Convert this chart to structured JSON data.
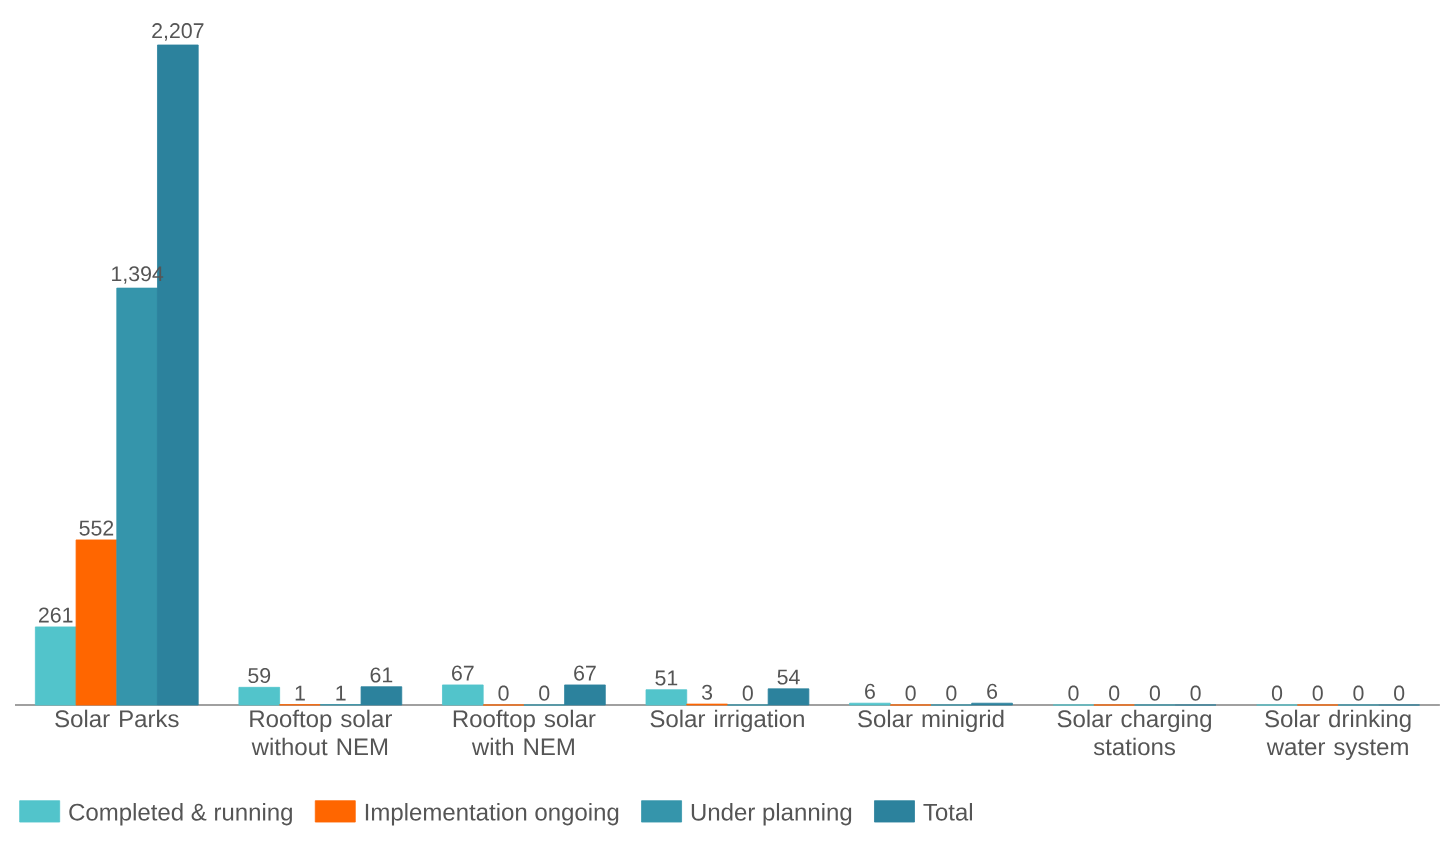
{
  "chart_data": {
    "type": "bar",
    "categories": [
      "Solar Parks",
      "Rooftop solar without NEM",
      "Rooftop solar with NEM",
      "Solar irrigation",
      "Solar minigrid",
      "Solar charging stations",
      "Solar drinking water system"
    ],
    "series": [
      {
        "name": "Completed & running",
        "color": "#52c4cb",
        "values": [
          261,
          59,
          67,
          51,
          6,
          0,
          0
        ],
        "value_labels": [
          "261",
          "59",
          "67",
          "51",
          "6",
          "0",
          "0"
        ]
      },
      {
        "name": "Implementation ongoing",
        "color": "#ff6600",
        "values": [
          552,
          1,
          0,
          3,
          0,
          0,
          0
        ],
        "value_labels": [
          "552",
          "1",
          "0",
          "3",
          "0",
          "0",
          "0"
        ]
      },
      {
        "name": "Under planning",
        "color": "#3595ab",
        "values": [
          1394,
          1,
          0,
          0,
          0,
          0,
          0
        ],
        "value_labels": [
          "1,394",
          "1",
          "0",
          "0",
          "0",
          "0",
          "0"
        ]
      },
      {
        "name": "Total",
        "color": "#2c829d",
        "values": [
          2207,
          61,
          67,
          54,
          6,
          0,
          0
        ],
        "value_labels": [
          "2,207",
          "61",
          "67",
          "54",
          "6",
          "0",
          "0"
        ]
      }
    ],
    "legend": "bottom"
  }
}
